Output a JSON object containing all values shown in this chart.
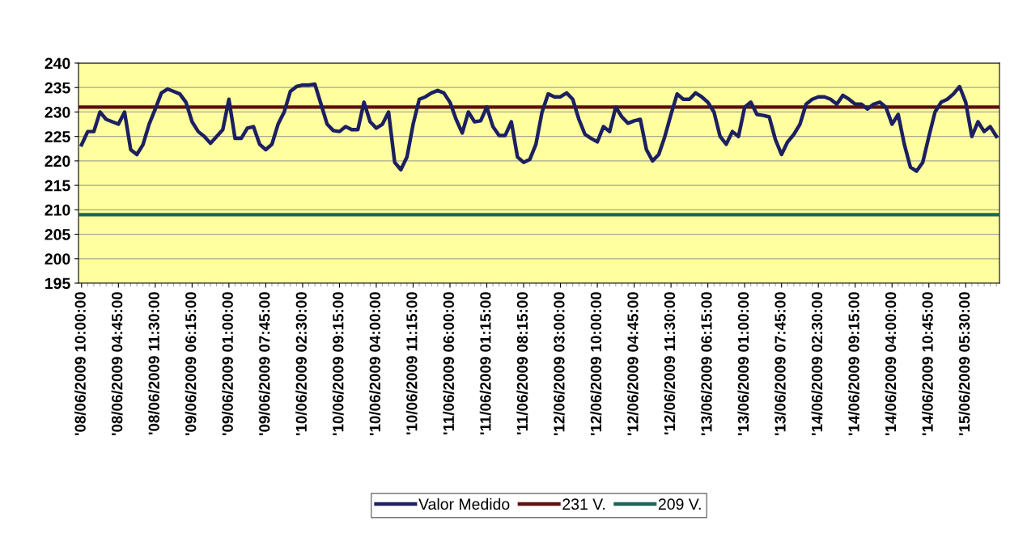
{
  "chart_data": {
    "type": "line",
    "categories": [
      "'08/06/2009 10:00:00",
      null,
      null,
      null,
      null,
      null,
      "'08/06/2009 04:45:00",
      null,
      null,
      null,
      null,
      null,
      "'08/06/2009 11:30:00",
      null,
      null,
      null,
      null,
      null,
      "'09/06/2009 06:15:00",
      null,
      null,
      null,
      null,
      null,
      "'09/06/2009 01:00:00",
      null,
      null,
      null,
      null,
      null,
      "'09/06/2009 07:45:00",
      null,
      null,
      null,
      null,
      null,
      "'10/06/2009 02:30:00",
      null,
      null,
      null,
      null,
      null,
      "'10/06/2009 09:15:00",
      null,
      null,
      null,
      null,
      null,
      "'10/06/2009 04:00:00",
      null,
      null,
      null,
      null,
      null,
      "'10/06/2009 11:15:00",
      null,
      null,
      null,
      null,
      null,
      "'11/06/2009 06:00:00",
      null,
      null,
      null,
      null,
      null,
      "'11/06/2009 01:15:00",
      null,
      null,
      null,
      null,
      null,
      "'11/06/2009 08:15:00",
      null,
      null,
      null,
      null,
      null,
      "'12/06/2009 03:00:00",
      null,
      null,
      null,
      null,
      null,
      "'12/06/2009 10:00:00",
      null,
      null,
      null,
      null,
      null,
      "'12/06/2009 04:45:00",
      null,
      null,
      null,
      null,
      null,
      "'12/06/2009 11:30:00",
      null,
      null,
      null,
      null,
      null,
      "'13/06/2009 06:15:00",
      null,
      null,
      null,
      null,
      null,
      "'13/06/2009 01:00:00",
      null,
      null,
      null,
      null,
      null,
      "'13/06/2009 07:45:00",
      null,
      null,
      null,
      null,
      null,
      "'14/06/2009 02:30:00",
      null,
      null,
      null,
      null,
      null,
      "'14/06/2009 09:15:00",
      null,
      null,
      null,
      null,
      null,
      "'14/06/2009 04:00:00",
      null,
      null,
      null,
      null,
      null,
      "'14/06/2009 10:45:00",
      null,
      null,
      null,
      null,
      null,
      "'15/06/2009 05:30:00",
      null,
      null,
      null,
      null,
      null
    ],
    "series": [
      {
        "name": "Valor Medido",
        "color": "#1c2060",
        "values": [
          223.3,
          226,
          226,
          230,
          228.5,
          228,
          227.5,
          230,
          222.3,
          221.3,
          223.3,
          227.5,
          230.6,
          233.9,
          234.7,
          234.2,
          233.7,
          232,
          228,
          226,
          225,
          223.6,
          225,
          226.4,
          232.6,
          224.6,
          224.6,
          226.7,
          227,
          223.4,
          222.3,
          223.4,
          227.5,
          230,
          234.2,
          235.2,
          235.5,
          235.5,
          235.7,
          231.6,
          227.5,
          226.2,
          226,
          227,
          226.4,
          226.4,
          232,
          228,
          226.7,
          227.5,
          230,
          219.7,
          218.2,
          220.8,
          227.5,
          232.6,
          233.1,
          233.9,
          234.4,
          233.9,
          232,
          228.5,
          225.7,
          230,
          228,
          228.2,
          231,
          227,
          225.2,
          225.2,
          228,
          220.8,
          219.7,
          220.3,
          223.4,
          230,
          233.7,
          233.1,
          233.1,
          233.9,
          232.6,
          228.5,
          225.4,
          224.6,
          223.9,
          227,
          226,
          231,
          229,
          227.7,
          228.2,
          228.5,
          222.3,
          220,
          221.3,
          225,
          229.5,
          233.7,
          232.6,
          232.6,
          233.9,
          233.1,
          232,
          230,
          225,
          223.4,
          226,
          225,
          231,
          232,
          229.5,
          229.3,
          229,
          224.4,
          221.3,
          223.9,
          225.4,
          227.5,
          231.6,
          232.6,
          233.1,
          233.1,
          232.6,
          231.6,
          233.4,
          232.6,
          231.6,
          231.6,
          230.6,
          231.6,
          232,
          231,
          227.5,
          229.5,
          223.4,
          218.7,
          217.9,
          219.7,
          225,
          230,
          232,
          232.6,
          233.7,
          235.2,
          232,
          225,
          228,
          226,
          227,
          225
        ]
      }
    ],
    "ref_lines": [
      {
        "axis": "y",
        "value": 231,
        "label": "231 V.",
        "color": "#5c1010"
      },
      {
        "axis": "y",
        "value": 209,
        "label": "209 V.",
        "color": "#1e6458"
      }
    ],
    "ylim": [
      195,
      240
    ],
    "yticks": [
      195,
      200,
      205,
      210,
      215,
      220,
      225,
      230,
      235,
      240
    ],
    "grid": "y",
    "legend": "bottom",
    "marker": "none",
    "line_style": "solid"
  }
}
